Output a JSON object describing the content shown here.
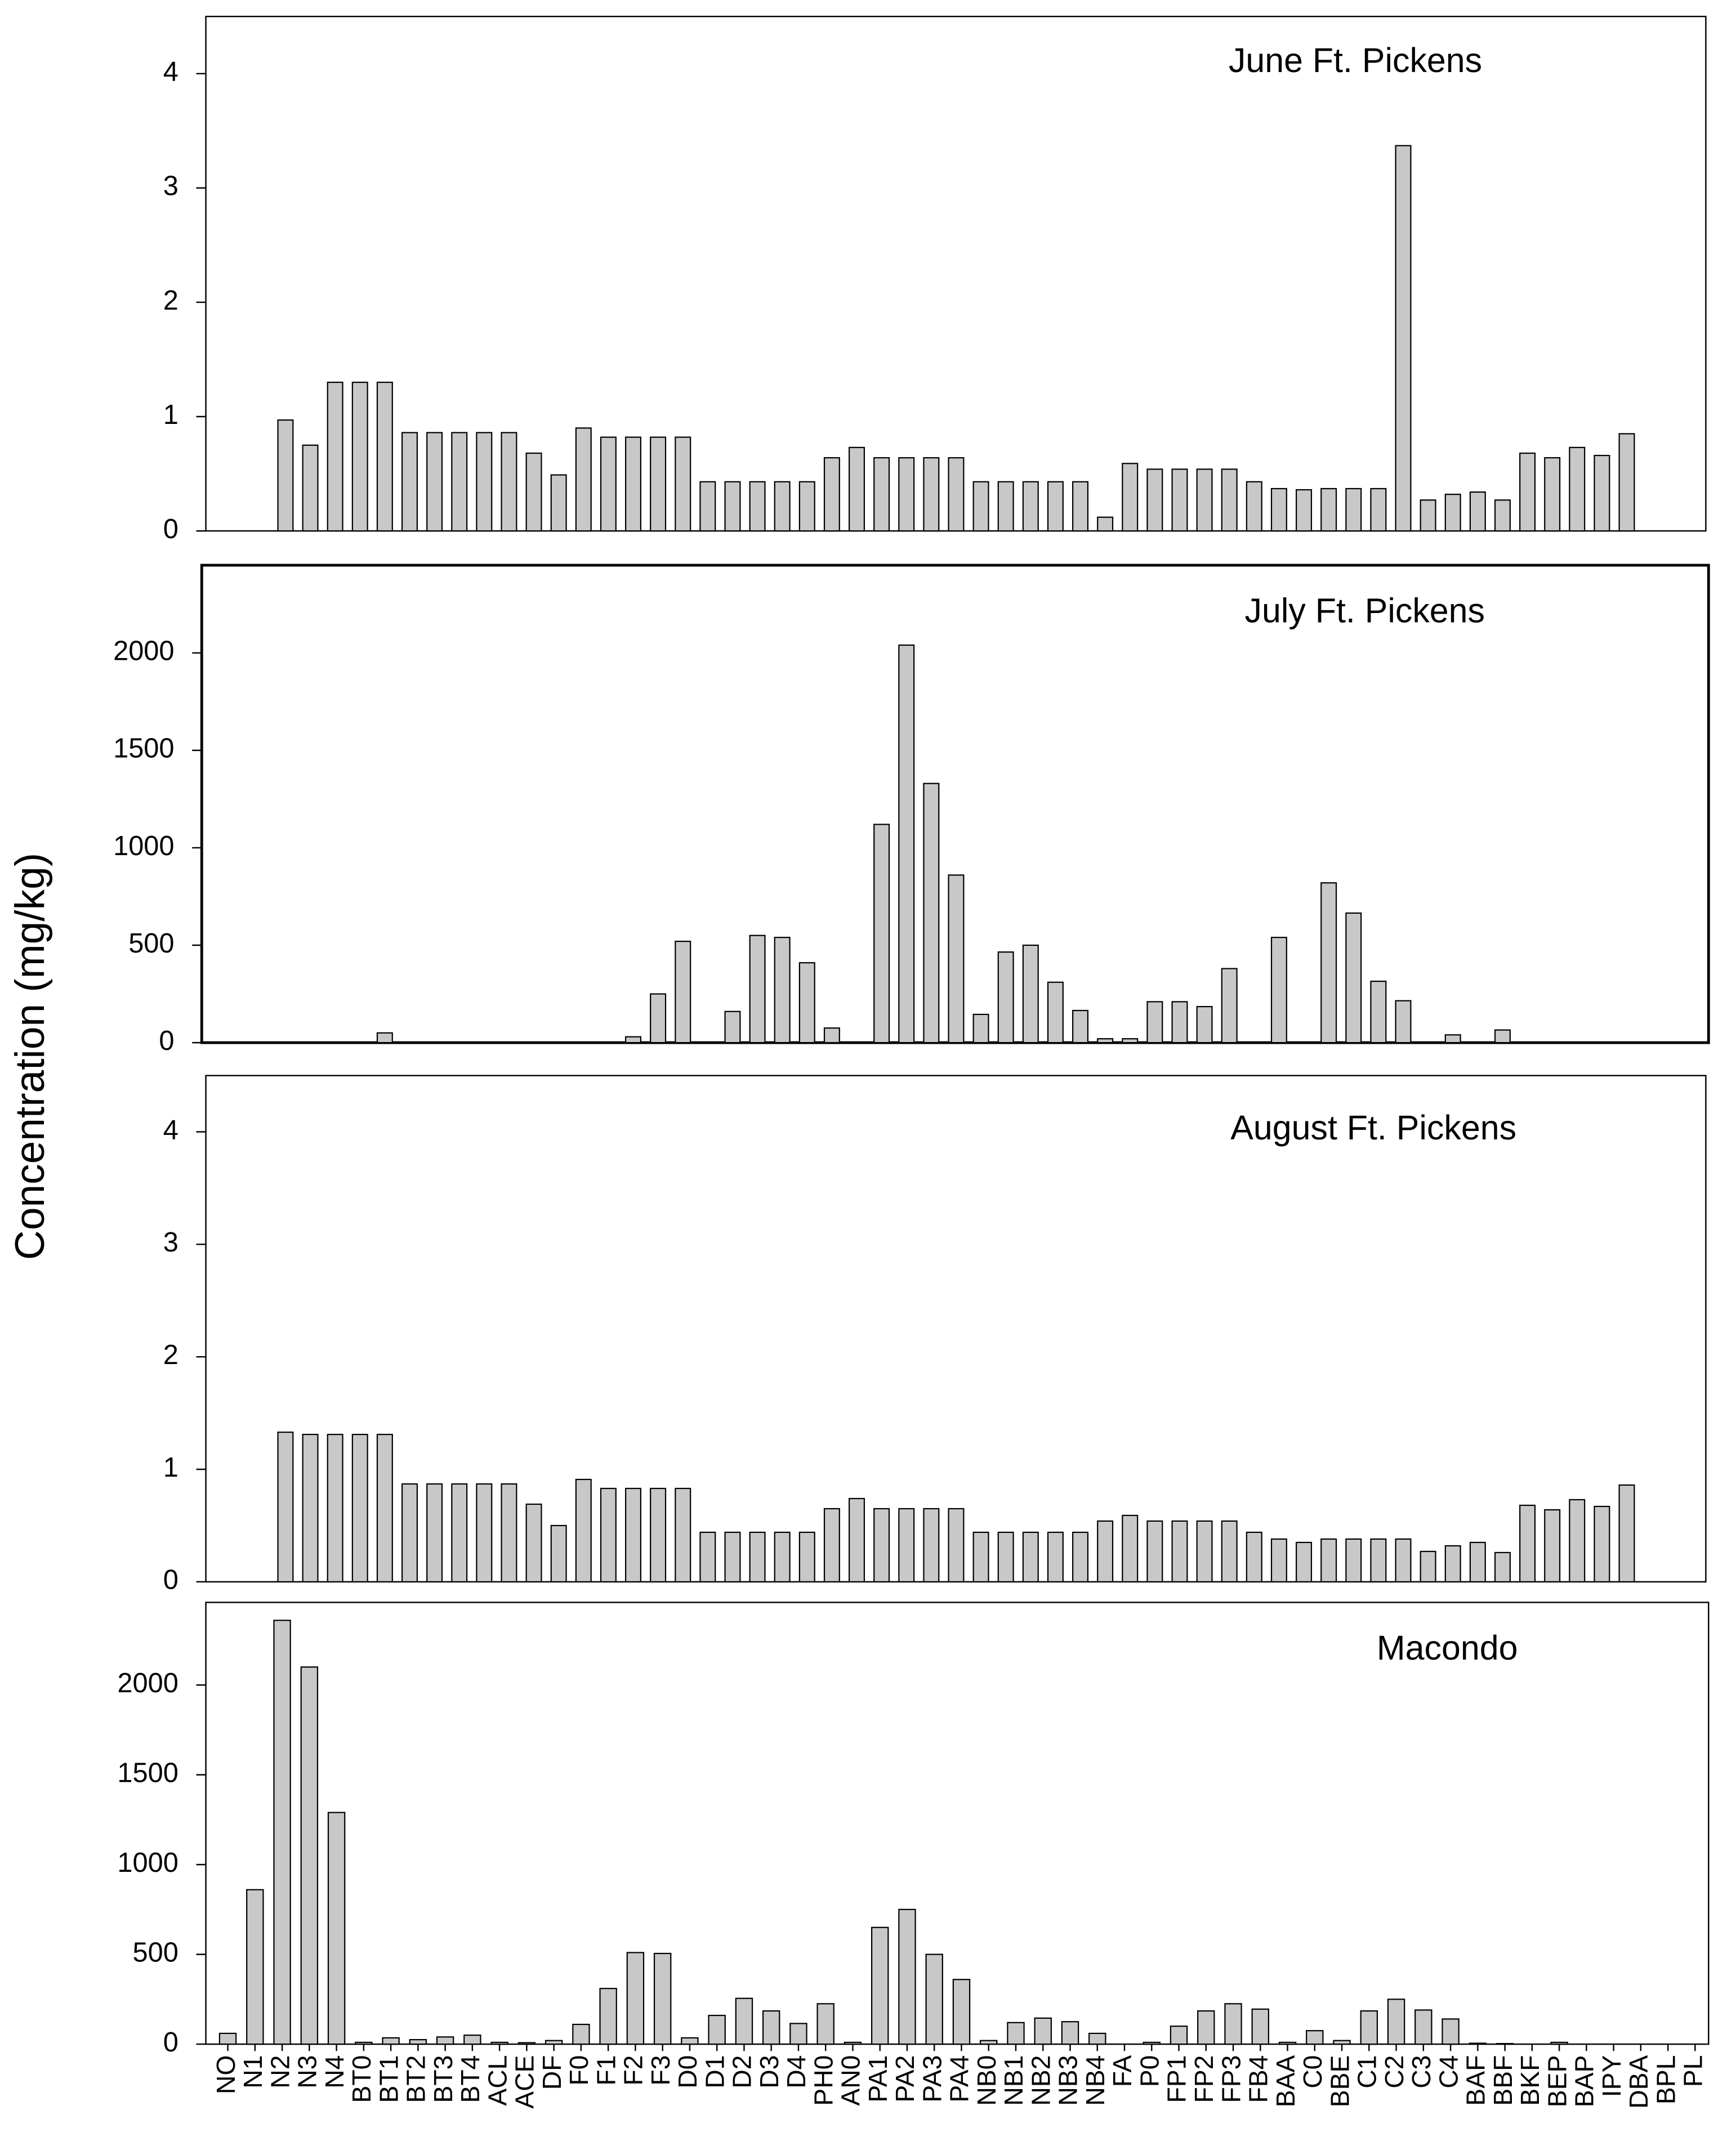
{
  "chart_data": [
    {
      "type": "bar",
      "title": "June Ft. Pickens",
      "y_label": "Concentration (mg/kg)",
      "color": "#c8c8c8",
      "values": [
        0.97,
        0.75,
        1.3,
        1.3,
        1.3,
        0.86,
        0.86,
        0.86,
        0.86,
        0.86,
        0.68,
        0.49,
        0.9,
        0.82,
        0.82,
        0.82,
        0.82,
        0.43,
        0.43,
        0.43,
        0.43,
        0.43,
        0.64,
        0.73,
        0.64,
        0.64,
        0.64,
        0.64,
        0.43,
        0.43,
        0.43,
        0.43,
        0.43,
        0.12,
        0.59,
        0.54,
        0.54,
        0.54,
        0.54,
        0.43,
        0.37,
        0.36,
        0.37,
        0.37,
        0.37,
        3.37,
        0.27,
        0.32,
        0.34,
        0.27,
        0.68,
        0.64,
        0.73,
        0.66,
        0.85
      ],
      "ylim": [
        0,
        4.5
      ],
      "yticks": [
        0,
        1,
        2,
        3,
        4
      ]
    },
    {
      "type": "bar",
      "title": "July Ft. Pickens",
      "color": "#c8c8c8",
      "values": [
        0,
        0,
        0,
        0,
        50,
        0,
        0,
        0,
        0,
        0,
        0,
        0,
        0,
        0,
        30,
        250,
        520,
        0,
        160,
        550,
        540,
        410,
        75,
        0,
        1120,
        2040,
        1330,
        860,
        145,
        465,
        500,
        310,
        165,
        20,
        20,
        210,
        210,
        185,
        380,
        0,
        540,
        0,
        820,
        665,
        315,
        215,
        0,
        40,
        0,
        65,
        0,
        0,
        0,
        0,
        0
      ],
      "ylim": [
        0,
        2450
      ],
      "yticks": [
        0,
        500,
        1000,
        1500,
        2000
      ]
    },
    {
      "type": "bar",
      "title": "August Ft. Pickens",
      "color": "#c8c8c8",
      "values": [
        1.33,
        1.31,
        1.31,
        1.31,
        1.31,
        0.87,
        0.87,
        0.87,
        0.87,
        0.87,
        0.69,
        0.5,
        0.91,
        0.83,
        0.83,
        0.83,
        0.83,
        0.44,
        0.44,
        0.44,
        0.44,
        0.44,
        0.65,
        0.74,
        0.65,
        0.65,
        0.65,
        0.65,
        0.44,
        0.44,
        0.44,
        0.44,
        0.44,
        0.54,
        0.59,
        0.54,
        0.54,
        0.54,
        0.54,
        0.44,
        0.38,
        0.35,
        0.38,
        0.38,
        0.38,
        0.38,
        0.27,
        0.32,
        0.35,
        0.26,
        0.68,
        0.64,
        0.73,
        0.67,
        0.86
      ],
      "ylim": [
        0,
        4.5
      ],
      "yticks": [
        0,
        1,
        2,
        3,
        4
      ]
    },
    {
      "type": "bar",
      "title": "Macondo",
      "color": "#c8c8c8",
      "categories": [
        "NO",
        "N1",
        "N2",
        "N3",
        "N4",
        "BT0",
        "BT1",
        "BT2",
        "BT3",
        "BT4",
        "ACL",
        "ACE",
        "DF",
        "F0",
        "F1",
        "F2",
        "F3",
        "D0",
        "D1",
        "D2",
        "D3",
        "D4",
        "PH0",
        "AN0",
        "PA1",
        "PA2",
        "PA3",
        "PA4",
        "NB0",
        "NB1",
        "NB2",
        "NB3",
        "NB4",
        "FA",
        "P0",
        "FP1",
        "FP2",
        "FP3",
        "FB4",
        "BAA",
        "C0",
        "BBE",
        "C1",
        "C2",
        "C3",
        "C4",
        "BAF",
        "BBF",
        "BKF",
        "BEP",
        "BAP",
        "IPY",
        "DBA",
        "BPL",
        "PL"
      ],
      "values": [
        60,
        860,
        2360,
        2100,
        1290,
        10,
        35,
        25,
        40,
        50,
        10,
        8,
        20,
        110,
        310,
        510,
        505,
        35,
        160,
        255,
        185,
        115,
        225,
        10,
        650,
        750,
        500,
        360,
        20,
        120,
        145,
        125,
        60,
        0,
        10,
        100,
        185,
        225,
        195,
        10,
        75,
        20,
        185,
        250,
        190,
        140,
        5,
        3,
        0,
        10,
        0,
        0,
        0,
        0,
        0
      ],
      "ylim": [
        0,
        2460
      ],
      "yticks": [
        0,
        500,
        1000,
        1500,
        2000
      ]
    }
  ]
}
